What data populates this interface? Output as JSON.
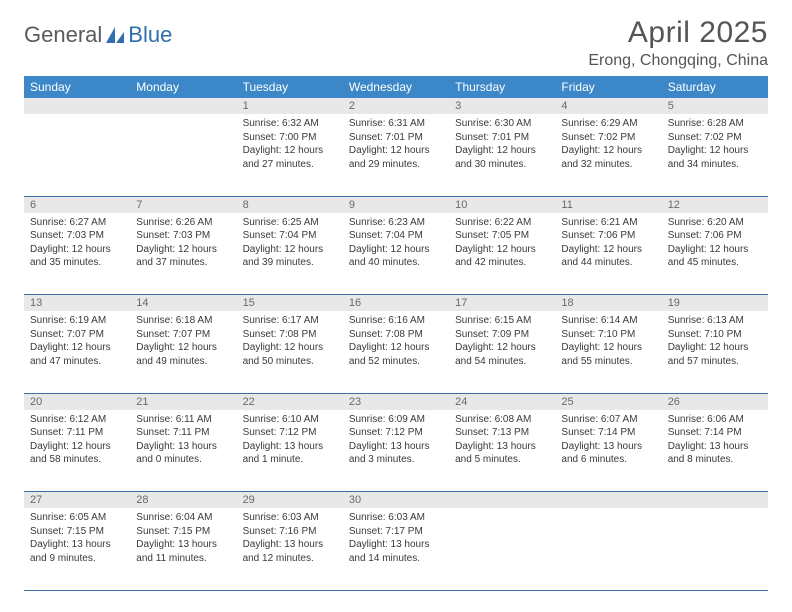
{
  "brand": {
    "part1": "General",
    "part2": "Blue"
  },
  "header": {
    "title": "April 2025",
    "location": "Erong, Chongqing, China"
  },
  "colors": {
    "header_bg": "#3b87c8",
    "header_fg": "#ffffff",
    "daynum_bg": "#e8e8e8",
    "daynum_fg": "#6a6a6a",
    "row_border": "#3b6fa0",
    "logo_gray": "#5a5a5a",
    "logo_blue": "#2f6fb0"
  },
  "weekdays": [
    "Sunday",
    "Monday",
    "Tuesday",
    "Wednesday",
    "Thursday",
    "Friday",
    "Saturday"
  ],
  "cells": [
    {
      "blank": true
    },
    {
      "blank": true
    },
    {
      "n": "1",
      "sr": "Sunrise: 6:32 AM",
      "ss": "Sunset: 7:00 PM",
      "dl": "Daylight: 12 hours and 27 minutes."
    },
    {
      "n": "2",
      "sr": "Sunrise: 6:31 AM",
      "ss": "Sunset: 7:01 PM",
      "dl": "Daylight: 12 hours and 29 minutes."
    },
    {
      "n": "3",
      "sr": "Sunrise: 6:30 AM",
      "ss": "Sunset: 7:01 PM",
      "dl": "Daylight: 12 hours and 30 minutes."
    },
    {
      "n": "4",
      "sr": "Sunrise: 6:29 AM",
      "ss": "Sunset: 7:02 PM",
      "dl": "Daylight: 12 hours and 32 minutes."
    },
    {
      "n": "5",
      "sr": "Sunrise: 6:28 AM",
      "ss": "Sunset: 7:02 PM",
      "dl": "Daylight: 12 hours and 34 minutes."
    },
    {
      "n": "6",
      "sr": "Sunrise: 6:27 AM",
      "ss": "Sunset: 7:03 PM",
      "dl": "Daylight: 12 hours and 35 minutes."
    },
    {
      "n": "7",
      "sr": "Sunrise: 6:26 AM",
      "ss": "Sunset: 7:03 PM",
      "dl": "Daylight: 12 hours and 37 minutes."
    },
    {
      "n": "8",
      "sr": "Sunrise: 6:25 AM",
      "ss": "Sunset: 7:04 PM",
      "dl": "Daylight: 12 hours and 39 minutes."
    },
    {
      "n": "9",
      "sr": "Sunrise: 6:23 AM",
      "ss": "Sunset: 7:04 PM",
      "dl": "Daylight: 12 hours and 40 minutes."
    },
    {
      "n": "10",
      "sr": "Sunrise: 6:22 AM",
      "ss": "Sunset: 7:05 PM",
      "dl": "Daylight: 12 hours and 42 minutes."
    },
    {
      "n": "11",
      "sr": "Sunrise: 6:21 AM",
      "ss": "Sunset: 7:06 PM",
      "dl": "Daylight: 12 hours and 44 minutes."
    },
    {
      "n": "12",
      "sr": "Sunrise: 6:20 AM",
      "ss": "Sunset: 7:06 PM",
      "dl": "Daylight: 12 hours and 45 minutes."
    },
    {
      "n": "13",
      "sr": "Sunrise: 6:19 AM",
      "ss": "Sunset: 7:07 PM",
      "dl": "Daylight: 12 hours and 47 minutes."
    },
    {
      "n": "14",
      "sr": "Sunrise: 6:18 AM",
      "ss": "Sunset: 7:07 PM",
      "dl": "Daylight: 12 hours and 49 minutes."
    },
    {
      "n": "15",
      "sr": "Sunrise: 6:17 AM",
      "ss": "Sunset: 7:08 PM",
      "dl": "Daylight: 12 hours and 50 minutes."
    },
    {
      "n": "16",
      "sr": "Sunrise: 6:16 AM",
      "ss": "Sunset: 7:08 PM",
      "dl": "Daylight: 12 hours and 52 minutes."
    },
    {
      "n": "17",
      "sr": "Sunrise: 6:15 AM",
      "ss": "Sunset: 7:09 PM",
      "dl": "Daylight: 12 hours and 54 minutes."
    },
    {
      "n": "18",
      "sr": "Sunrise: 6:14 AM",
      "ss": "Sunset: 7:10 PM",
      "dl": "Daylight: 12 hours and 55 minutes."
    },
    {
      "n": "19",
      "sr": "Sunrise: 6:13 AM",
      "ss": "Sunset: 7:10 PM",
      "dl": "Daylight: 12 hours and 57 minutes."
    },
    {
      "n": "20",
      "sr": "Sunrise: 6:12 AM",
      "ss": "Sunset: 7:11 PM",
      "dl": "Daylight: 12 hours and 58 minutes."
    },
    {
      "n": "21",
      "sr": "Sunrise: 6:11 AM",
      "ss": "Sunset: 7:11 PM",
      "dl": "Daylight: 13 hours and 0 minutes."
    },
    {
      "n": "22",
      "sr": "Sunrise: 6:10 AM",
      "ss": "Sunset: 7:12 PM",
      "dl": "Daylight: 13 hours and 1 minute."
    },
    {
      "n": "23",
      "sr": "Sunrise: 6:09 AM",
      "ss": "Sunset: 7:12 PM",
      "dl": "Daylight: 13 hours and 3 minutes."
    },
    {
      "n": "24",
      "sr": "Sunrise: 6:08 AM",
      "ss": "Sunset: 7:13 PM",
      "dl": "Daylight: 13 hours and 5 minutes."
    },
    {
      "n": "25",
      "sr": "Sunrise: 6:07 AM",
      "ss": "Sunset: 7:14 PM",
      "dl": "Daylight: 13 hours and 6 minutes."
    },
    {
      "n": "26",
      "sr": "Sunrise: 6:06 AM",
      "ss": "Sunset: 7:14 PM",
      "dl": "Daylight: 13 hours and 8 minutes."
    },
    {
      "n": "27",
      "sr": "Sunrise: 6:05 AM",
      "ss": "Sunset: 7:15 PM",
      "dl": "Daylight: 13 hours and 9 minutes."
    },
    {
      "n": "28",
      "sr": "Sunrise: 6:04 AM",
      "ss": "Sunset: 7:15 PM",
      "dl": "Daylight: 13 hours and 11 minutes."
    },
    {
      "n": "29",
      "sr": "Sunrise: 6:03 AM",
      "ss": "Sunset: 7:16 PM",
      "dl": "Daylight: 13 hours and 12 minutes."
    },
    {
      "n": "30",
      "sr": "Sunrise: 6:03 AM",
      "ss": "Sunset: 7:17 PM",
      "dl": "Daylight: 13 hours and 14 minutes."
    },
    {
      "blank": true
    },
    {
      "blank": true
    },
    {
      "blank": true
    }
  ]
}
